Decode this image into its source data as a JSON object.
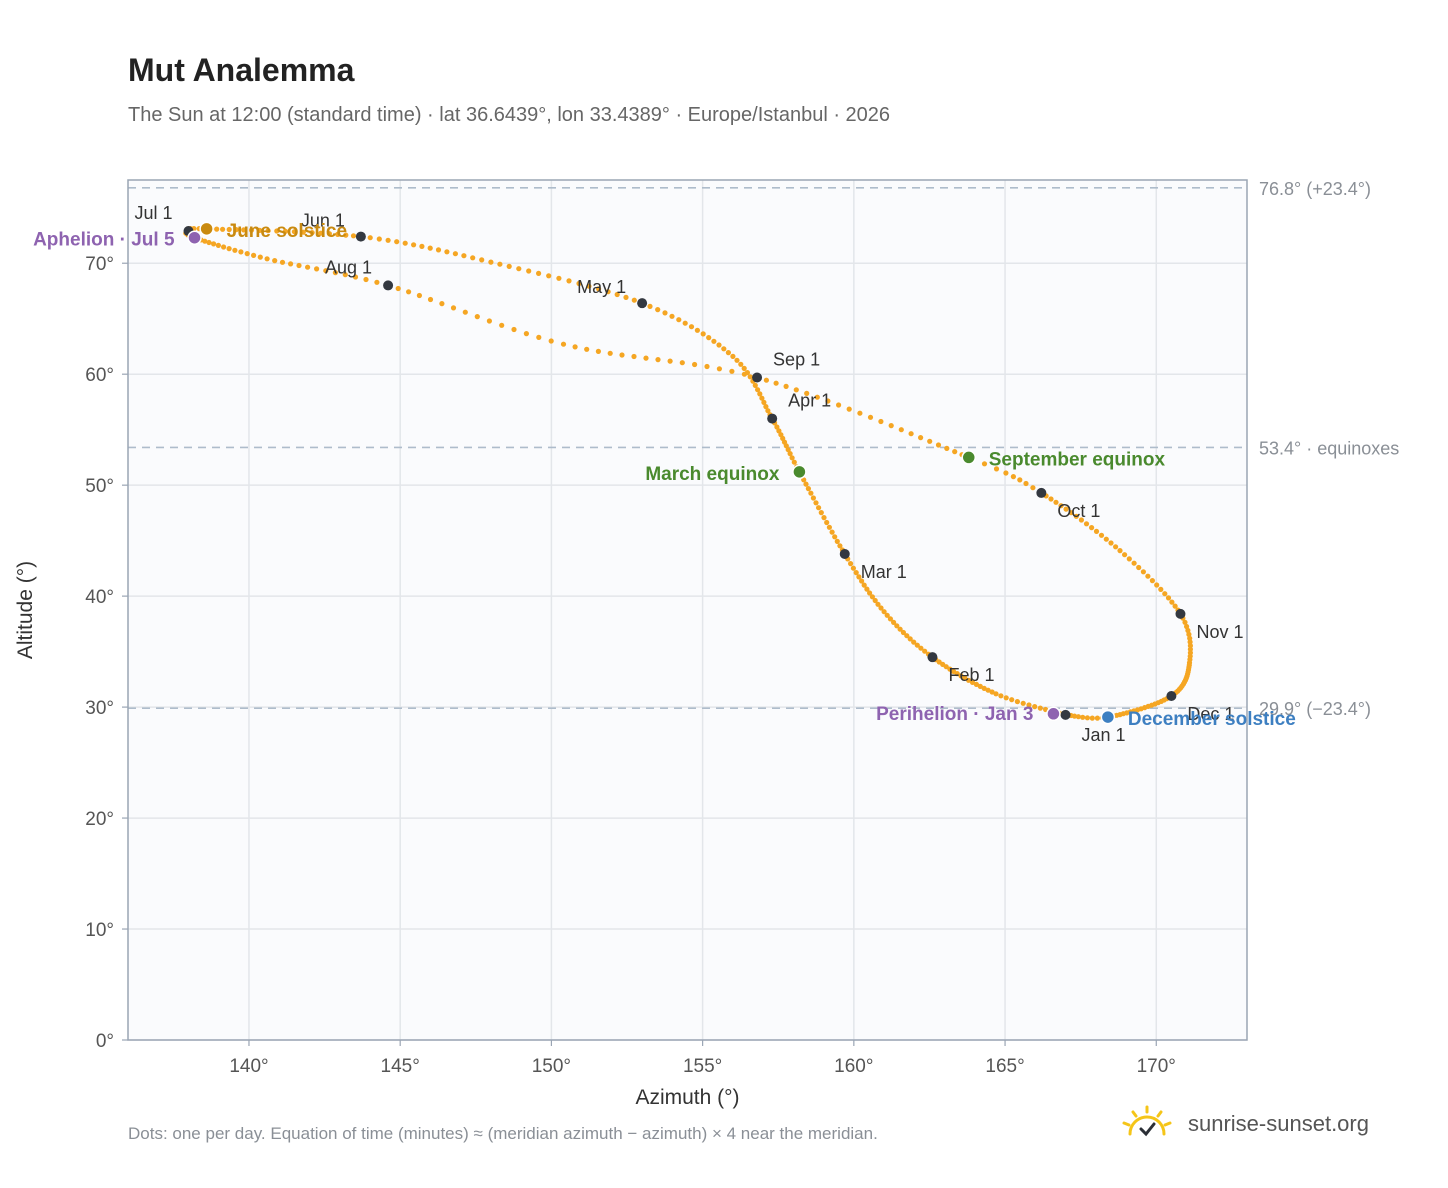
{
  "title": "Mut Analemma",
  "subtitle": "The Sun at 12:00 (standard time) · lat 36.6439°, lon 33.4389° · Europe/Istanbul · 2026",
  "footnote": "Dots: one per day. Equation of time (minutes) ≈ (meridian azimuth − azimuth) × 4 near the meridian.",
  "brand": {
    "name": "sunrise-sunset.org",
    "icon": "sun-logo-icon",
    "color": "#f5c518"
  },
  "chart_data": {
    "type": "scatter",
    "title": "Mut Analemma",
    "xlabel": "Azimuth (°)",
    "ylabel": "Altitude (°)",
    "xlim": [
      136,
      173
    ],
    "ylim": [
      0,
      77.5
    ],
    "xticks": [
      140,
      145,
      150,
      155,
      160,
      165,
      170
    ],
    "yticks": [
      0,
      10,
      20,
      30,
      40,
      50,
      60,
      70
    ],
    "grid": true,
    "colors": {
      "path": "#f5a623",
      "month": "#333840",
      "solstice_june": "#c98a10",
      "solstice_december": "#3d7fc1",
      "equinox": "#4a8a2e",
      "apsis": "#8e63b0",
      "refline": "#aebccb",
      "grid": "#e3e6ea",
      "plot_bg": "#fafbfd",
      "frame": "#9aa5b4"
    },
    "reference_lines": [
      {
        "y": 76.8,
        "label": "76.8° (+23.4°)"
      },
      {
        "y": 53.4,
        "label": "53.4° · equinoxes"
      },
      {
        "y": 29.9,
        "label": "29.9° (−23.4°)"
      }
    ],
    "anchors": [
      [
        1,
        167.0,
        29.3
      ],
      [
        15,
        164.7,
        31.2
      ],
      [
        32,
        162.6,
        34.5
      ],
      [
        46,
        161.0,
        38.6
      ],
      [
        60,
        159.7,
        43.8
      ],
      [
        78,
        158.2,
        51.2
      ],
      [
        91,
        157.3,
        56.0
      ],
      [
        106,
        156.0,
        61.6
      ],
      [
        121,
        153.0,
        66.4
      ],
      [
        137,
        148.0,
        70.1
      ],
      [
        152,
        143.7,
        72.4
      ],
      [
        172,
        138.6,
        73.1
      ],
      [
        182,
        138.0,
        72.9
      ],
      [
        186,
        138.2,
        72.3
      ],
      [
        200,
        140.6,
        70.4
      ],
      [
        213,
        144.6,
        68.0
      ],
      [
        228,
        150.4,
        62.7
      ],
      [
        244,
        156.8,
        59.7
      ],
      [
        266,
        163.8,
        52.5
      ],
      [
        274,
        166.2,
        49.3
      ],
      [
        290,
        168.8,
        44.1
      ],
      [
        305,
        170.8,
        38.4
      ],
      [
        318,
        171.1,
        34.0
      ],
      [
        335,
        170.5,
        31.0
      ],
      [
        355,
        168.4,
        29.1
      ],
      [
        365,
        167.0,
        29.3
      ]
    ],
    "months": [
      {
        "label": "Jan 1",
        "x": 167.0,
        "y": 29.3
      },
      {
        "label": "Feb 1",
        "x": 162.6,
        "y": 34.5
      },
      {
        "label": "Mar 1",
        "x": 159.7,
        "y": 43.8
      },
      {
        "label": "Apr 1",
        "x": 157.3,
        "y": 56.0
      },
      {
        "label": "May 1",
        "x": 153.0,
        "y": 66.4
      },
      {
        "label": "Jun 1",
        "x": 143.7,
        "y": 72.4
      },
      {
        "label": "Jul 1",
        "x": 138.0,
        "y": 72.9
      },
      {
        "label": "Aug 1",
        "x": 144.6,
        "y": 68.0
      },
      {
        "label": "Sep 1",
        "x": 156.8,
        "y": 59.7
      },
      {
        "label": "Oct 1",
        "x": 166.2,
        "y": 49.3
      },
      {
        "label": "Nov 1",
        "x": 170.8,
        "y": 38.4
      },
      {
        "label": "Dec 1",
        "x": 170.5,
        "y": 31.0
      }
    ],
    "events": [
      {
        "label": "June solstice",
        "x": 138.6,
        "y": 73.1,
        "kind": "solstice_june"
      },
      {
        "label": "December solstice",
        "x": 168.4,
        "y": 29.1,
        "kind": "solstice_december"
      },
      {
        "label": "March equinox",
        "x": 158.2,
        "y": 51.2,
        "kind": "equinox"
      },
      {
        "label": "September equinox",
        "x": 163.8,
        "y": 52.5,
        "kind": "equinox"
      },
      {
        "label": "Aphelion · Jul 5",
        "x": 138.2,
        "y": 72.3,
        "kind": "apsis"
      },
      {
        "label": "Perihelion · Jan 3",
        "x": 166.6,
        "y": 29.4,
        "kind": "apsis"
      }
    ]
  }
}
